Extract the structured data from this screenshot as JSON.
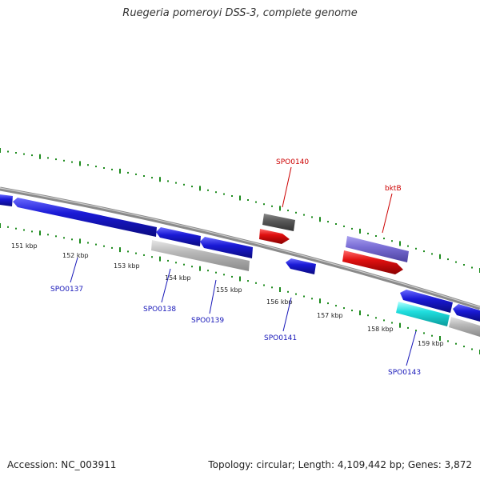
{
  "title": "Ruegeria pomeroyi DSS-3, complete genome",
  "footer": {
    "accession": "Accession: NC_003911",
    "stats": "Topology: circular; Length: 4,109,442 bp; Genes: 3,872"
  },
  "ticks": [
    "151 kbp",
    "152 kbp",
    "153 kbp",
    "154 kbp",
    "155 kbp",
    "156 kbp",
    "157 kbp",
    "158 kbp",
    "159 kbp"
  ],
  "genes": [
    {
      "name": "",
      "color": "#1a1ad6"
    },
    {
      "name": "SPO0137",
      "color": "#1a1ad6",
      "label_color": "#1616b8"
    },
    {
      "name": "",
      "color": "#1a1ad6"
    },
    {
      "name": "SPO0138",
      "color": "#b8b8b8",
      "label_color": "#1616b8"
    },
    {
      "name": "SPO0139",
      "color": "#1a1ad6",
      "label_color": "#1616b8"
    },
    {
      "name": "SPO0140",
      "color": "#5a5a5a",
      "label_color": "#cc0000"
    },
    {
      "name": "",
      "color": "#e01010"
    },
    {
      "name": "SPO0141",
      "color": "#1a1ad6",
      "label_color": "#1616b8"
    },
    {
      "name": "bktB",
      "color": "#7b6fd6",
      "label_color": "#cc0000"
    },
    {
      "name": "",
      "color": "#e01010"
    },
    {
      "name": "",
      "color": "#1a1ad6"
    },
    {
      "name": "SPO0143",
      "color": "#20dede",
      "label_color": "#1616b8"
    },
    {
      "name": "",
      "color": "#1a1ad6"
    },
    {
      "name": "",
      "color": "#b8b8b8"
    }
  ],
  "colors": {
    "backbone": "#808080",
    "tick_marks": "#1e8c1e"
  }
}
